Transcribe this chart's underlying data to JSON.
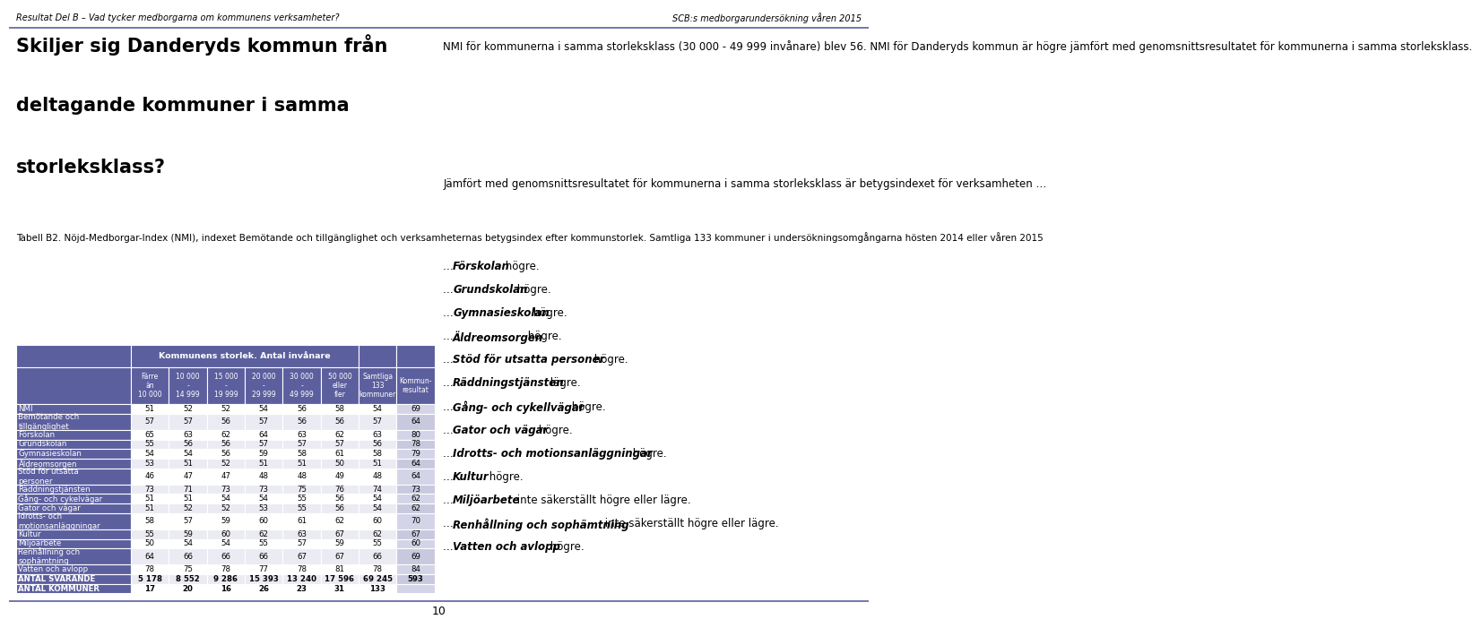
{
  "header_top_left": "Resultat Del B – Vad tycker medborgarna om kommunens verksamheter?",
  "header_top_right": "SCB:s medborgarundersökning våren 2015",
  "big_title_line1": "Skiljer sig Danderyds kommun från",
  "big_title_line2": "deltagande kommuner i samma",
  "big_title_line3": "storleksklass?",
  "tabell_label": "Tabell B2.",
  "tabell_text": "Nöjd-Medborgar-Index (NMI), indexet Bemötande och tillgänglighet och verksamheternas betygsindex efter kommunstorlek. Samtliga 133 kommuner i undersökningsomgångarna hösten 2014 eller våren 2015",
  "para1": "NMI för kommunerna i samma storleksklass (30 000 - 49 999 invånare) blev 56. NMI för Danderyds kommun är högre jämfört med genomsnittsresultatet för kommunerna i samma storleksklass.",
  "para2": "Jämfört med genomsnittsresultatet för kommunerna i samma storleksklass är betygsindexet för verksamheten …",
  "bullet_items": [
    [
      "… ",
      "Förskolan",
      " högre."
    ],
    [
      "… ",
      "Grundskolan",
      " högre."
    ],
    [
      "… ",
      "Gymnasieskolan",
      " högre."
    ],
    [
      "… ",
      "Äldreomsorgen",
      " högre."
    ],
    [
      "… ",
      "Stöd för utsatta personer",
      " högre."
    ],
    [
      "… ",
      "Räddningstjänsten",
      " lägre."
    ],
    [
      "… ",
      "Gång- och cykellvägar",
      " högre."
    ],
    [
      "… ",
      "Gator och vägar",
      " högre."
    ],
    [
      "… ",
      "Idrotts- och motionsanläggningar",
      " högre."
    ],
    [
      "… ",
      "Kultur",
      " högre."
    ],
    [
      "… ",
      "Miljöarbete",
      " inte säkerställt högre eller lägre."
    ],
    [
      "… ",
      "Renhållning och sophämtning",
      " inte säkerställt högre eller lägre."
    ],
    [
      "… ",
      "Vatten och avlopp",
      " högre."
    ]
  ],
  "col_header_span": "Kommunens storlek. Antal invånare",
  "col_headers": [
    "Färre\nän\n10 000",
    "10 000\n-\n14 999",
    "15 000\n-\n19 999",
    "20 000\n-\n29 999",
    "30 000\n-\n49 999",
    "50 000\neller\nfler",
    "Samtliga\n133\nkommuner",
    "Kommun-\nresultat"
  ],
  "row_labels": [
    "NMI",
    "Bemötande och\ntillgänglighet",
    "Förskolan",
    "Grundskolan",
    "Gymnasieskolan",
    "Äldreomsorgen",
    "Stöd för utsatta\npersoner",
    "Räddningstjänsten",
    "Gång- och cykelvägar",
    "Gator och vägar",
    "Idrotts- och\nmotionsanläggningar",
    "Kultur",
    "Miljöarbete",
    "Renhållning och\nsophämtning",
    "Vatten och avlopp",
    "ANTAL SVARANDE",
    "ANTAL KOMMUNER"
  ],
  "table_data": [
    [
      51,
      52,
      52,
      54,
      56,
      58,
      54,
      69
    ],
    [
      57,
      57,
      56,
      57,
      56,
      56,
      57,
      64
    ],
    [
      65,
      63,
      62,
      64,
      63,
      62,
      63,
      80
    ],
    [
      55,
      56,
      56,
      57,
      57,
      57,
      56,
      78
    ],
    [
      54,
      54,
      56,
      59,
      58,
      61,
      58,
      79
    ],
    [
      53,
      51,
      52,
      51,
      51,
      50,
      51,
      64
    ],
    [
      46,
      47,
      47,
      48,
      48,
      49,
      48,
      64
    ],
    [
      73,
      71,
      73,
      73,
      75,
      76,
      74,
      73
    ],
    [
      51,
      51,
      54,
      54,
      55,
      56,
      54,
      62
    ],
    [
      51,
      52,
      52,
      53,
      55,
      56,
      54,
      62
    ],
    [
      58,
      57,
      59,
      60,
      61,
      62,
      60,
      70
    ],
    [
      55,
      59,
      60,
      62,
      63,
      67,
      62,
      67
    ],
    [
      50,
      54,
      54,
      55,
      57,
      59,
      55,
      60
    ],
    [
      64,
      66,
      66,
      66,
      67,
      67,
      66,
      69
    ],
    [
      78,
      75,
      78,
      77,
      78,
      81,
      78,
      84
    ],
    [
      "5 178",
      "8 552",
      "9 286",
      "15 393",
      "13 240",
      "17 596",
      "69 245",
      593
    ],
    [
      17,
      20,
      16,
      26,
      23,
      31,
      133,
      ""
    ]
  ],
  "bold_rows": [
    15,
    16
  ],
  "header_bg": "#5c5f9e",
  "header_fg": "#ffffff",
  "row_label_bg": "#5c5f9e",
  "row_label_fg": "#ffffff",
  "even_row_bg": "#ffffff",
  "odd_row_bg": "#ebebf3",
  "last_col_even_bg": "#d4d4e8",
  "last_col_odd_bg": "#c8c8de",
  "border_color": "#ffffff",
  "accent_color": "#5c5f9e",
  "page_number": "10"
}
